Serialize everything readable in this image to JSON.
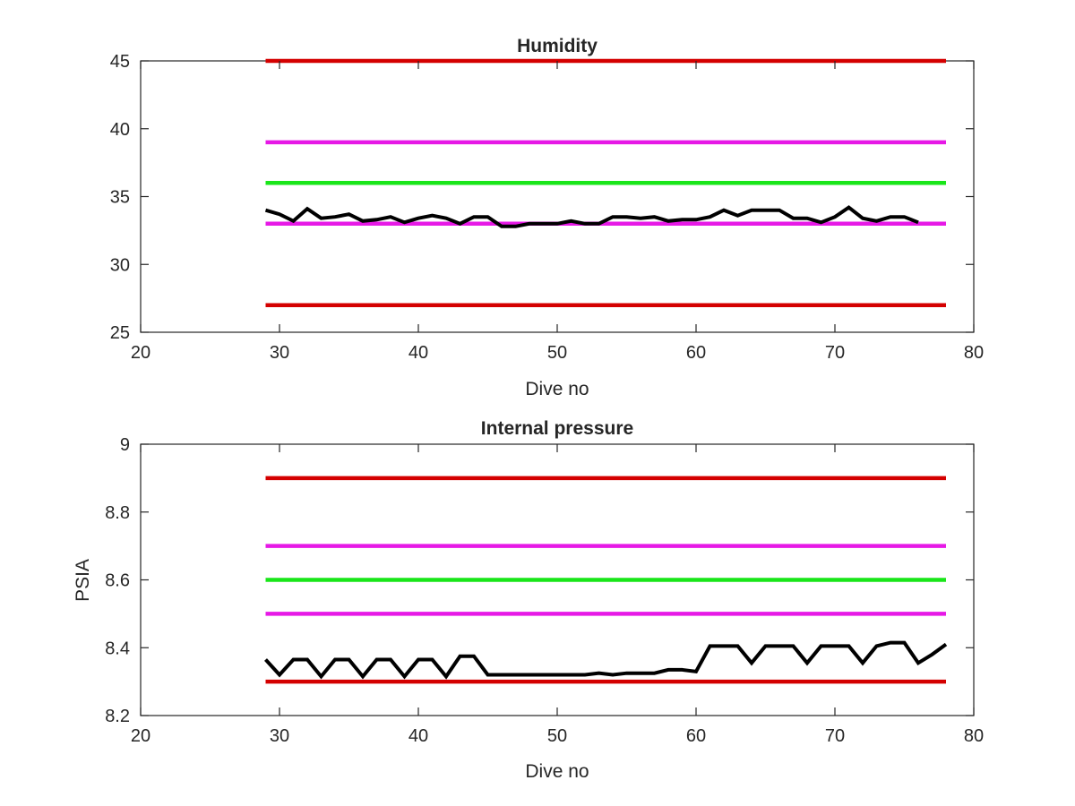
{
  "chart_data": [
    {
      "type": "line",
      "title": "Humidity",
      "xlabel": "Dive no",
      "ylabel": "",
      "xlim": [
        20,
        80
      ],
      "ylim": [
        25,
        45
      ],
      "xticks": [
        20,
        30,
        40,
        50,
        60,
        70,
        80
      ],
      "yticks": [
        25,
        30,
        35,
        40,
        45
      ],
      "grid": false,
      "legend": "none",
      "series": [
        {
          "role": "limit",
          "color": "#d40000",
          "x": [
            29,
            78
          ],
          "y": [
            45,
            45
          ]
        },
        {
          "role": "limit",
          "color": "#e619e6",
          "x": [
            29,
            78
          ],
          "y": [
            39,
            39
          ]
        },
        {
          "role": "limit",
          "color": "#19e619",
          "x": [
            29,
            78
          ],
          "y": [
            36,
            36
          ]
        },
        {
          "role": "limit",
          "color": "#e619e6",
          "x": [
            29,
            78
          ],
          "y": [
            33,
            33
          ]
        },
        {
          "role": "limit",
          "color": "#d40000",
          "x": [
            29,
            78
          ],
          "y": [
            27,
            27
          ]
        },
        {
          "role": "data",
          "color": "#000000",
          "x": [
            29,
            30,
            31,
            32,
            33,
            34,
            35,
            36,
            37,
            38,
            39,
            40,
            41,
            42,
            43,
            44,
            45,
            46,
            47,
            48,
            49,
            50,
            51,
            52,
            53,
            54,
            55,
            56,
            57,
            58,
            59,
            60,
            61,
            62,
            63,
            64,
            65,
            66,
            67,
            68,
            69,
            70,
            71,
            72,
            73,
            74,
            75,
            76
          ],
          "y": [
            34,
            33.7,
            33.2,
            34.1,
            33.4,
            33.5,
            33.7,
            33.2,
            33.3,
            33.5,
            33.1,
            33.4,
            33.6,
            33.4,
            33,
            33.5,
            33.5,
            32.8,
            32.8,
            33,
            33,
            33,
            33.2,
            33,
            33,
            33.5,
            33.5,
            33.4,
            33.5,
            33.2,
            33.3,
            33.3,
            33.5,
            34,
            33.6,
            34,
            34,
            34,
            33.4,
            33.4,
            33.1,
            33.5,
            34.2,
            33.4,
            33.2,
            33.5,
            33.5,
            33.1
          ]
        }
      ]
    },
    {
      "type": "line",
      "title": "Internal pressure",
      "xlabel": "Dive no",
      "ylabel": "PSIA",
      "xlim": [
        20,
        80
      ],
      "ylim": [
        8.2,
        9
      ],
      "xticks": [
        20,
        30,
        40,
        50,
        60,
        70,
        80
      ],
      "yticks": [
        "8.2",
        "8.4",
        "8.6",
        "8.8",
        "9"
      ],
      "grid": false,
      "legend": "none",
      "series": [
        {
          "role": "limit",
          "color": "#d40000",
          "x": [
            29,
            78
          ],
          "y": [
            8.9,
            8.9
          ]
        },
        {
          "role": "limit",
          "color": "#e619e6",
          "x": [
            29,
            78
          ],
          "y": [
            8.7,
            8.7
          ]
        },
        {
          "role": "limit",
          "color": "#19e619",
          "x": [
            29,
            78
          ],
          "y": [
            8.6,
            8.6
          ]
        },
        {
          "role": "limit",
          "color": "#e619e6",
          "x": [
            29,
            78
          ],
          "y": [
            8.5,
            8.5
          ]
        },
        {
          "role": "limit",
          "color": "#d40000",
          "x": [
            29,
            78
          ],
          "y": [
            8.3,
            8.3
          ]
        },
        {
          "role": "data",
          "color": "#000000",
          "x": [
            29,
            30,
            31,
            32,
            33,
            34,
            35,
            36,
            37,
            38,
            39,
            40,
            41,
            42,
            43,
            44,
            45,
            46,
            47,
            48,
            49,
            50,
            51,
            52,
            53,
            54,
            55,
            56,
            57,
            58,
            59,
            60,
            61,
            62,
            63,
            64,
            65,
            66,
            67,
            68,
            69,
            70,
            71,
            72,
            73,
            74,
            75,
            76,
            77,
            78
          ],
          "y": [
            8.365,
            8.32,
            8.365,
            8.365,
            8.315,
            8.365,
            8.365,
            8.315,
            8.365,
            8.365,
            8.315,
            8.365,
            8.365,
            8.315,
            8.375,
            8.375,
            8.32,
            8.32,
            8.32,
            8.32,
            8.32,
            8.32,
            8.32,
            8.32,
            8.325,
            8.32,
            8.325,
            8.325,
            8.325,
            8.335,
            8.335,
            8.33,
            8.405,
            8.405,
            8.405,
            8.355,
            8.405,
            8.405,
            8.405,
            8.355,
            8.405,
            8.405,
            8.405,
            8.355,
            8.405,
            8.415,
            8.415,
            8.355,
            8.38,
            8.41
          ]
        }
      ]
    }
  ]
}
